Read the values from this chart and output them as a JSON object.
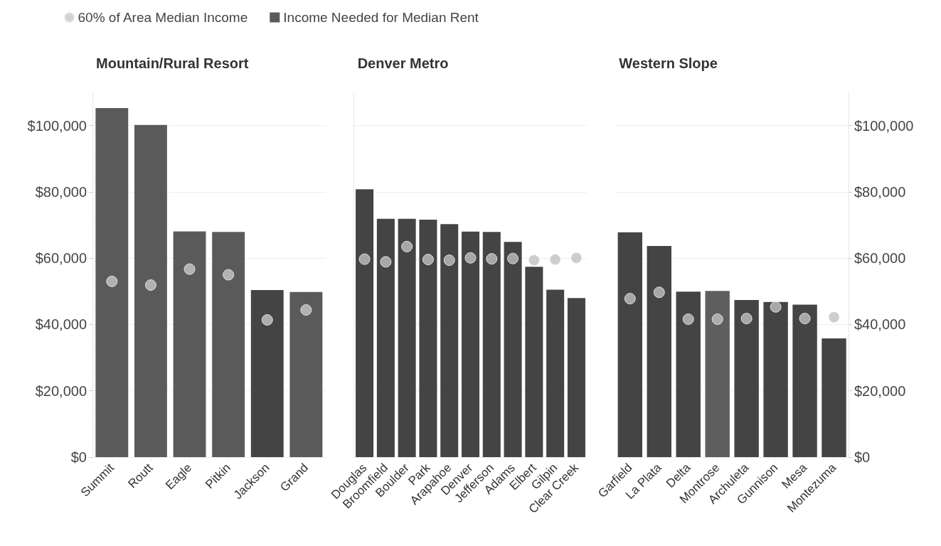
{
  "chart_data": [
    {
      "type": "bar",
      "title": "Mountain/Rural Resort",
      "legend": "top right",
      "grid": "y",
      "ylim": [
        0,
        110000
      ],
      "yticks": [
        {
          "value": 0,
          "label": "$0"
        },
        {
          "value": 20000,
          "label": "$20,000"
        },
        {
          "value": 40000,
          "label": "$40,000"
        },
        {
          "value": 60000,
          "label": "$60,000"
        },
        {
          "value": 80000,
          "label": "$80,000"
        },
        {
          "value": 100000,
          "label": "$100,000"
        }
      ],
      "categories": [
        "Summit",
        "Routt",
        "Eagle",
        "Pitkin",
        "Jackson",
        "Grand"
      ],
      "series": [
        {
          "type": "scatter",
          "name": "60% of Area Median Income",
          "color": "#c8c8c8",
          "values": [
            53000,
            51900,
            56700,
            55000,
            41400,
            44400
          ]
        },
        {
          "type": "bar",
          "name": "Income Needed for Median Rent",
          "color": "#5a5a5a",
          "colors": [
            "#5a5a5a",
            "#5a5a5a",
            "#5a5a5a",
            "#5a5a5a",
            "#444444",
            "#5a5a5a"
          ],
          "values": [
            105300,
            100200,
            68100,
            67900,
            50400,
            49800
          ]
        }
      ]
    },
    {
      "type": "bar",
      "title": "Denver Metro",
      "grid": "y",
      "tick_labels": "x",
      "ylim": [
        0,
        110000
      ],
      "yticks": [
        {
          "value": 0,
          "label": null
        },
        {
          "value": 20000,
          "label": null
        },
        {
          "value": 40000,
          "label": null
        },
        {
          "value": 60000,
          "label": null
        },
        {
          "value": 80000,
          "label": null
        },
        {
          "value": 100000,
          "label": null
        }
      ],
      "categories": [
        "Douglas",
        "Broomfield",
        "Boulder",
        "Park",
        "Arapahoe",
        "Denver",
        "Jefferson",
        "Adams",
        "Elbert",
        "Gilpin",
        "Clear Creek"
      ],
      "series": [
        {
          "type": "scatter",
          "color": "#c0c0c0",
          "values": [
            59700,
            58900,
            63500,
            59600,
            59400,
            60100,
            59800,
            59900,
            59400,
            59600,
            60100
          ]
        },
        {
          "type": "bar",
          "color": "#444444",
          "values": [
            80800,
            71900,
            71900,
            71600,
            70300,
            68000,
            67900,
            64900,
            57400,
            50500,
            48000
          ]
        }
      ]
    },
    {
      "type": "bar",
      "title": "Western Slope",
      "grid": "y",
      "y2lim": [
        0,
        110000
      ],
      "y2ticks": [
        {
          "value": 0,
          "label": "$0"
        },
        {
          "value": 20000,
          "label": "$20,000"
        },
        {
          "value": 40000,
          "label": "$40,000"
        },
        {
          "value": 60000,
          "label": "$60,000"
        },
        {
          "value": 80000,
          "label": "$80,000"
        },
        {
          "value": 100000,
          "label": "$100,000"
        }
      ],
      "categories": [
        "Garfield",
        "La Plata",
        "Delta",
        "Montrose",
        "Archuleta",
        "Gunnison",
        "Mesa",
        "Montezuma"
      ],
      "series": [
        {
          "type": "scatter",
          "axis": "y2",
          "color": "#c0c0c0",
          "values": [
            47800,
            49700,
            41600,
            41600,
            41800,
            45300,
            41800,
            42200
          ]
        },
        {
          "type": "bar",
          "axis": "y2",
          "color": "#444444",
          "colors": [
            "#444444",
            "#444444",
            "#444444",
            "#5e5e5e",
            "#444444",
            "#444444",
            "#444444",
            "#444444"
          ],
          "values": [
            67800,
            63700,
            49900,
            50100,
            47400,
            46800,
            46000,
            35800
          ]
        }
      ]
    }
  ]
}
